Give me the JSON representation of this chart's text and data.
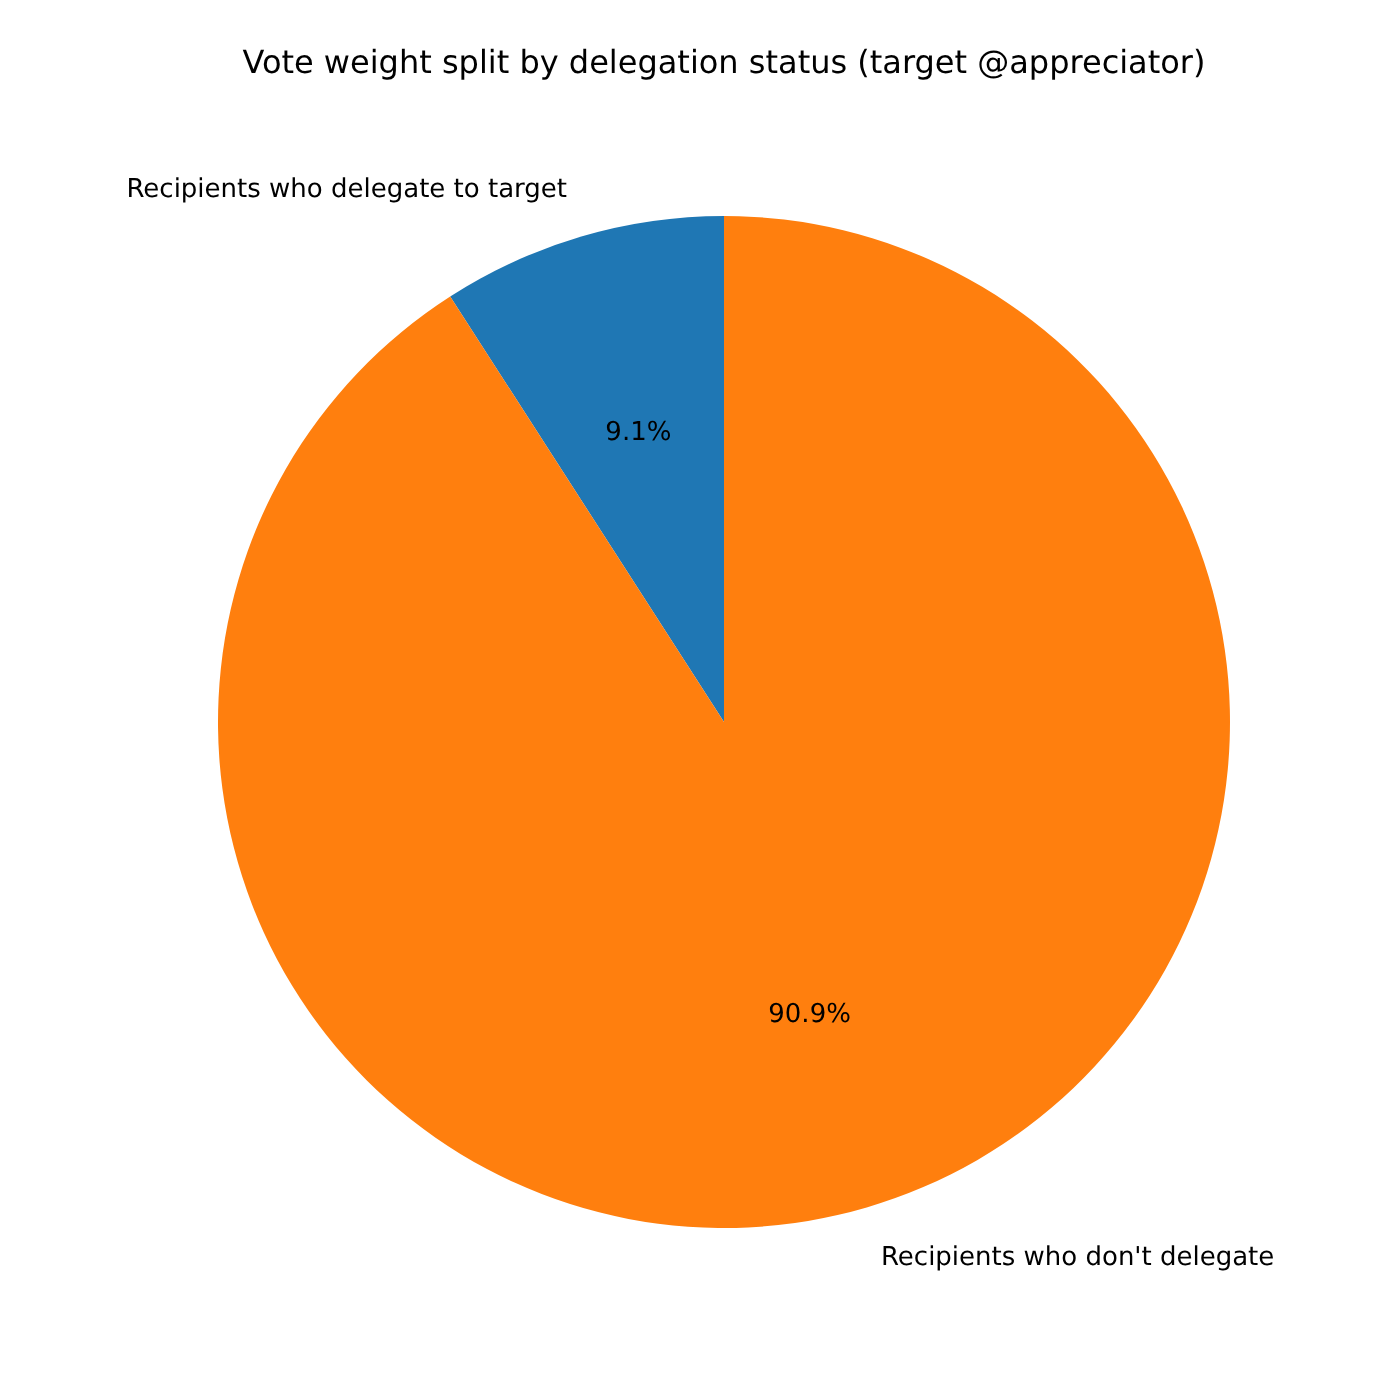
{
  "chart_data": {
    "type": "pie",
    "title": "Vote weight split by delegation status (target @appreciator)",
    "categories": [
      "Recipients who delegate to target",
      "Recipients who don't delegate"
    ],
    "values": [
      9.1,
      90.9
    ],
    "colors": [
      "#1f77b4",
      "#ff7f0e"
    ],
    "value_labels": [
      "9.1%",
      "90.9%"
    ],
    "legend": false
  }
}
